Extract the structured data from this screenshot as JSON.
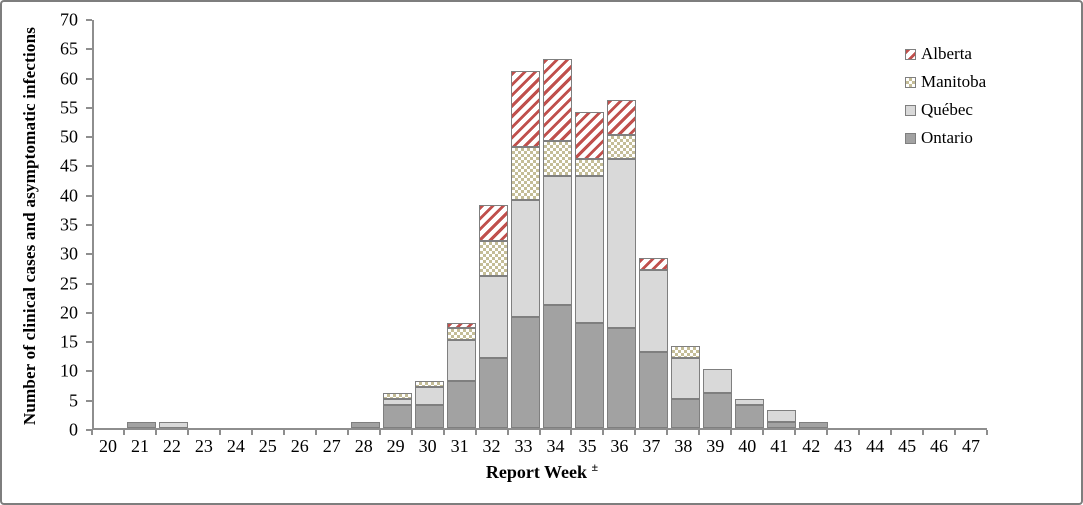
{
  "chart_data": {
    "type": "bar",
    "stacked": true,
    "title": "",
    "xlabel": "Report Week",
    "xlabel_superscript": "±",
    "ylabel": "Number of clinical  cases and asymptomatic infections",
    "ylim": [
      0,
      70
    ],
    "ytick_step": 5,
    "yticks": [
      0,
      5,
      10,
      15,
      20,
      25,
      30,
      35,
      40,
      45,
      50,
      55,
      60,
      65,
      70
    ],
    "grid": "off",
    "legend_position": "top-right",
    "axis_color": "#8e8e8e",
    "segment_border_color": "#7f7f7f",
    "categories": [
      "20",
      "21",
      "22",
      "23",
      "24",
      "25",
      "26",
      "27",
      "28",
      "29",
      "30",
      "31",
      "32",
      "33",
      "34",
      "35",
      "36",
      "37",
      "38",
      "39",
      "40",
      "41",
      "42",
      "43",
      "44",
      "45",
      "46",
      "47"
    ],
    "series": [
      {
        "name": "Ontario",
        "key": "ontario",
        "pattern": "solid",
        "color": "#a2a2a2",
        "values": [
          0,
          1,
          0,
          0,
          0,
          0,
          0,
          0,
          1,
          4,
          4,
          8,
          12,
          19,
          21,
          18,
          17,
          13,
          5,
          6,
          4,
          1,
          1,
          0,
          0,
          0,
          0,
          0
        ]
      },
      {
        "name": "Québec",
        "key": "quebec",
        "pattern": "solid",
        "color": "#d9d9d9",
        "values": [
          0,
          0,
          1,
          0,
          0,
          0,
          0,
          0,
          0,
          1,
          3,
          7,
          14,
          20,
          22,
          25,
          29,
          14,
          7,
          4,
          1,
          2,
          0,
          0,
          0,
          0,
          0,
          0
        ]
      },
      {
        "name": "Manitoba",
        "key": "manitoba",
        "pattern": "checkerboard",
        "color": "#c4bd97",
        "values": [
          0,
          0,
          0,
          0,
          0,
          0,
          0,
          0,
          0,
          1,
          1,
          2,
          6,
          9,
          6,
          3,
          4,
          0,
          2,
          0,
          0,
          0,
          0,
          0,
          0,
          0,
          0,
          0
        ]
      },
      {
        "name": "Alberta",
        "key": "alberta",
        "pattern": "diagonal-hatch",
        "color": "#c0504d",
        "values": [
          0,
          0,
          0,
          0,
          0,
          0,
          0,
          0,
          0,
          0,
          0,
          1,
          6,
          13,
          14,
          8,
          6,
          2,
          0,
          0,
          0,
          0,
          0,
          0,
          0,
          0,
          0,
          0
        ]
      }
    ],
    "legend_items": [
      "Alberta",
      "Manitoba",
      "Québec",
      "Ontario"
    ]
  }
}
